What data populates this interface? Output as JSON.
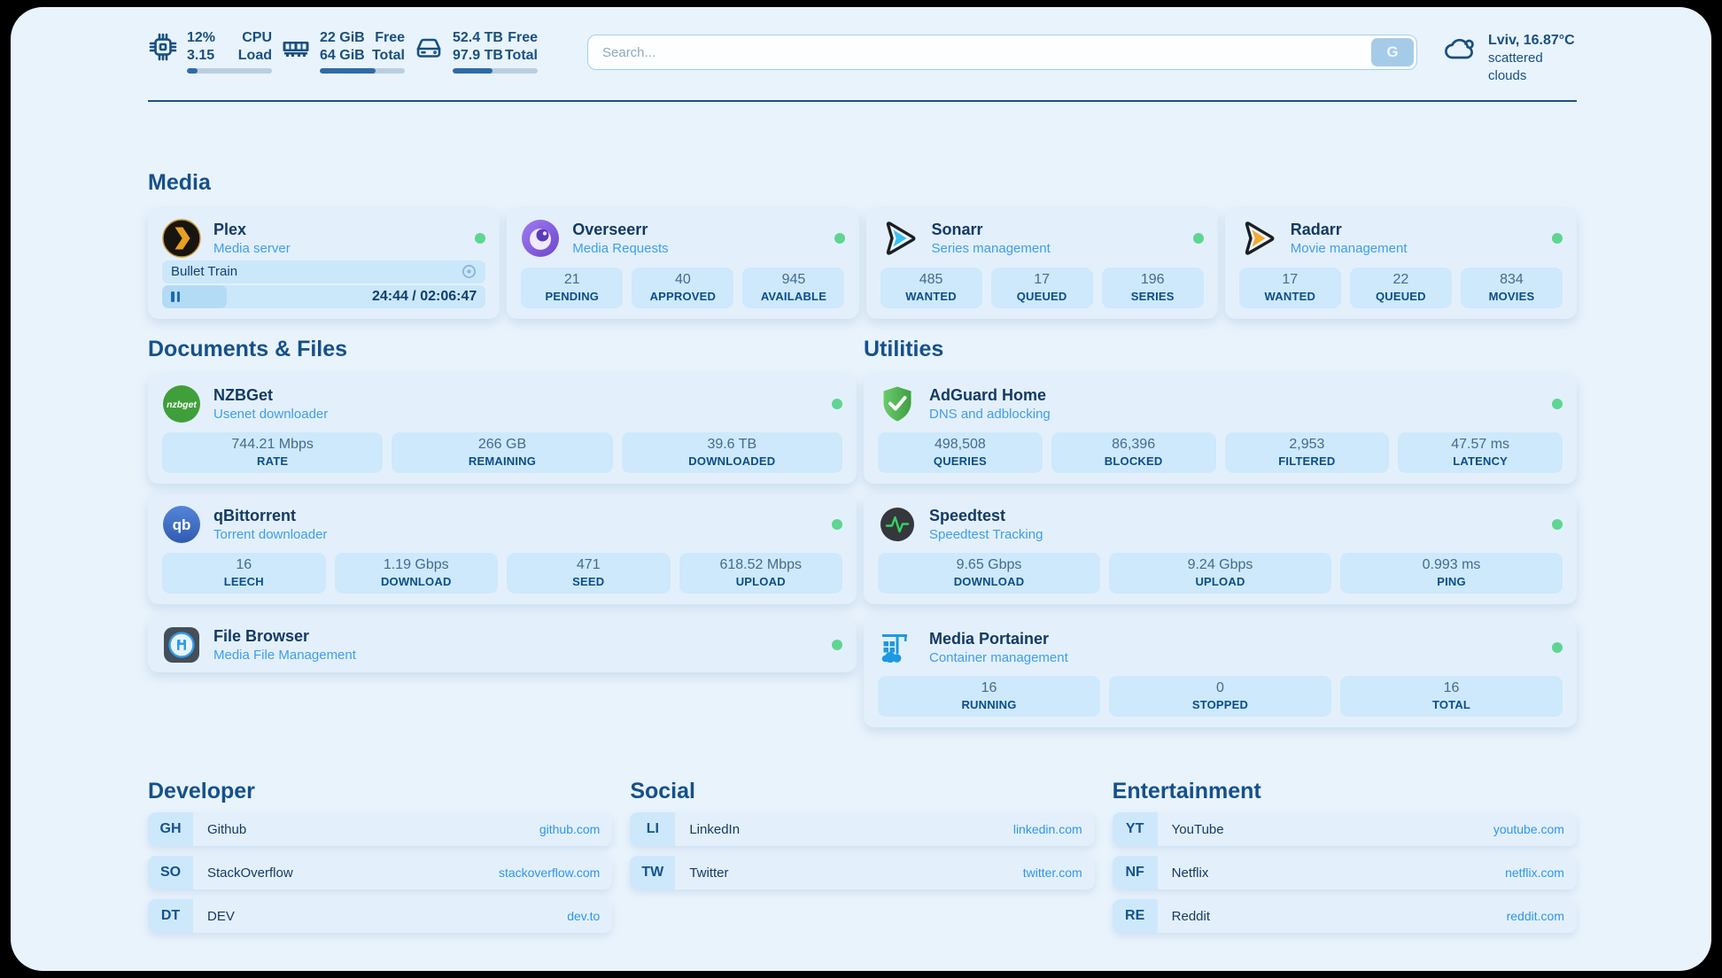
{
  "colors": {
    "accent": "#2e96ea",
    "status_online": "#5ed592",
    "panel_background": "#e9f3fc"
  },
  "header": {
    "stats": [
      {
        "icon": "cpu-icon",
        "v1": "12%",
        "v2": "3.15",
        "l1": "CPU",
        "l2": "Load",
        "progress": 12
      },
      {
        "icon": "memory-icon",
        "v1": "22 GiB",
        "v2": "64 GiB",
        "l1": "Free",
        "l2": "Total",
        "progress": 66
      },
      {
        "icon": "disk-icon",
        "v1": "52.4 TB",
        "v2": "97.9 TB",
        "l1": "Free",
        "l2": "Total",
        "progress": 47
      }
    ],
    "search": {
      "placeholder": "Search...",
      "button": "G"
    },
    "weather": {
      "icon": "cloud-icon",
      "line1": "Lviv, 16.87°C",
      "line2": "scattered clouds"
    }
  },
  "sections": {
    "media": {
      "title": "Media",
      "plex": {
        "icon": "plex-icon",
        "name": "Plex",
        "subtitle": "Media server",
        "status": "online",
        "now_playing": "Bullet Train",
        "progress": 20,
        "time": "24:44 / 02:06:47"
      },
      "overseerr": {
        "icon": "overseerr-icon",
        "name": "Overseerr",
        "subtitle": "Media Requests",
        "status": "online",
        "stats": [
          {
            "value": "21",
            "label": "PENDING"
          },
          {
            "value": "40",
            "label": "APPROVED"
          },
          {
            "value": "945",
            "label": "AVAILABLE"
          }
        ]
      },
      "sonarr": {
        "icon": "sonarr-icon",
        "name": "Sonarr",
        "subtitle": "Series management",
        "status": "online",
        "stats": [
          {
            "value": "485",
            "label": "WANTED"
          },
          {
            "value": "17",
            "label": "QUEUED"
          },
          {
            "value": "196",
            "label": "SERIES"
          }
        ]
      },
      "radarr": {
        "icon": "radarr-icon",
        "name": "Radarr",
        "subtitle": "Movie management",
        "status": "online",
        "stats": [
          {
            "value": "17",
            "label": "WANTED"
          },
          {
            "value": "22",
            "label": "QUEUED"
          },
          {
            "value": "834",
            "label": "MOVIES"
          }
        ]
      }
    },
    "documents": {
      "title": "Documents & Files",
      "nzbget": {
        "icon": "nzbget-icon",
        "name": "NZBGet",
        "subtitle": "Usenet downloader",
        "status": "online",
        "stats": [
          {
            "value": "744.21 Mbps",
            "label": "RATE"
          },
          {
            "value": "266 GB",
            "label": "REMAINING"
          },
          {
            "value": "39.6 TB",
            "label": "DOWNLOADED"
          }
        ]
      },
      "qbittorrent": {
        "icon": "qbittorrent-icon",
        "name": "qBittorrent",
        "subtitle": "Torrent downloader",
        "status": "online",
        "stats": [
          {
            "value": "16",
            "label": "LEECH"
          },
          {
            "value": "1.19 Gbps",
            "label": "DOWNLOAD"
          },
          {
            "value": "471",
            "label": "SEED"
          },
          {
            "value": "618.52 Mbps",
            "label": "UPLOAD"
          }
        ]
      },
      "filebrowser": {
        "icon": "filebrowser-icon",
        "name": "File Browser",
        "subtitle": "Media File Management",
        "status": "online"
      }
    },
    "utilities": {
      "title": "Utilities",
      "adguard": {
        "icon": "adguard-icon",
        "name": "AdGuard Home",
        "subtitle": "DNS and adblocking",
        "status": "online",
        "stats": [
          {
            "value": "498,508",
            "label": "QUERIES"
          },
          {
            "value": "86,396",
            "label": "BLOCKED"
          },
          {
            "value": "2,953",
            "label": "FILTERED"
          },
          {
            "value": "47.57 ms",
            "label": "LATENCY"
          }
        ]
      },
      "speedtest": {
        "icon": "speedtest-icon",
        "name": "Speedtest",
        "subtitle": "Speedtest Tracking",
        "status": "online",
        "stats": [
          {
            "value": "9.65 Gbps",
            "label": "DOWNLOAD"
          },
          {
            "value": "9.24 Gbps",
            "label": "UPLOAD"
          },
          {
            "value": "0.993 ms",
            "label": "PING"
          }
        ]
      },
      "portainer": {
        "icon": "portainer-icon",
        "name": "Media Portainer",
        "subtitle": "Container management",
        "status": "online",
        "stats": [
          {
            "value": "16",
            "label": "RUNNING"
          },
          {
            "value": "0",
            "label": "STOPPED"
          },
          {
            "value": "16",
            "label": "TOTAL"
          }
        ]
      }
    },
    "bookmarks": [
      {
        "title": "Developer",
        "links": [
          {
            "abbr": "GH",
            "name": "Github",
            "url": "github.com"
          },
          {
            "abbr": "SO",
            "name": "StackOverflow",
            "url": "stackoverflow.com"
          },
          {
            "abbr": "DT",
            "name": "DEV",
            "url": "dev.to"
          }
        ]
      },
      {
        "title": "Social",
        "links": [
          {
            "abbr": "LI",
            "name": "LinkedIn",
            "url": "linkedin.com"
          },
          {
            "abbr": "TW",
            "name": "Twitter",
            "url": "twitter.com"
          }
        ]
      },
      {
        "title": "Entertainment",
        "links": [
          {
            "abbr": "YT",
            "name": "YouTube",
            "url": "youtube.com"
          },
          {
            "abbr": "NF",
            "name": "Netflix",
            "url": "netflix.com"
          },
          {
            "abbr": "RE",
            "name": "Reddit",
            "url": "reddit.com"
          }
        ]
      }
    ]
  }
}
